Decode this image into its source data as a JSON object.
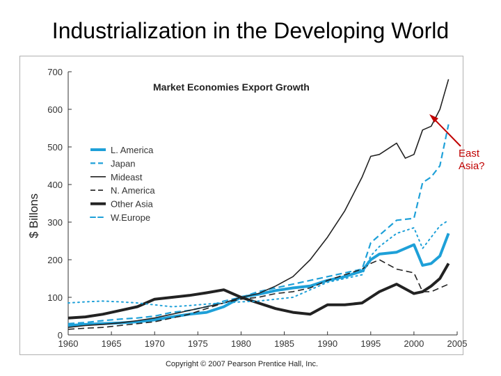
{
  "slide": {
    "title": "Industrialization in the Developing World",
    "callout": {
      "line1": "East",
      "line2": "Asia?",
      "color": "#c00000"
    },
    "copyright": "Copyright © 2007 Pearson Prentice Hall, Inc."
  },
  "chart_data": {
    "type": "line",
    "title": "Market Economies Export Growth",
    "ylabel": "$ Billons",
    "xlabel": "",
    "xlim": [
      1960,
      2005
    ],
    "ylim": [
      0,
      700
    ],
    "x_ticks": [
      1960,
      1965,
      1970,
      1975,
      1980,
      1985,
      1990,
      1995,
      2000,
      2005
    ],
    "y_ticks": [
      0,
      100,
      200,
      300,
      400,
      500,
      600,
      700
    ],
    "grid": false,
    "legend_position": "left",
    "series": [
      {
        "name": "L. America",
        "color": "#1ea0d8",
        "style": "thick",
        "x": [
          1960,
          1962,
          1964,
          1966,
          1968,
          1970,
          1972,
          1974,
          1976,
          1978,
          1980,
          1982,
          1984,
          1986,
          1988,
          1990,
          1992,
          1994,
          1995,
          1996,
          1998,
          2000,
          2001,
          2002,
          2003,
          2004
        ],
        "y": [
          25,
          28,
          30,
          32,
          35,
          40,
          48,
          55,
          60,
          75,
          100,
          108,
          118,
          125,
          130,
          145,
          155,
          170,
          200,
          215,
          220,
          240,
          185,
          190,
          210,
          270
        ]
      },
      {
        "name": "Japan",
        "color": "#1ea0d8",
        "style": "dashed",
        "x": [
          1960,
          1962,
          1964,
          1966,
          1968,
          1970,
          1972,
          1974,
          1976,
          1978,
          1980,
          1982,
          1984,
          1986,
          1988,
          1990,
          1992,
          1994,
          1995,
          1996,
          1998,
          2000,
          2001,
          2002,
          2003,
          2004
        ],
        "y": [
          30,
          33,
          38,
          42,
          45,
          50,
          60,
          65,
          75,
          90,
          100,
          115,
          125,
          135,
          145,
          155,
          165,
          175,
          245,
          265,
          305,
          310,
          405,
          420,
          450,
          560
        ]
      },
      {
        "name": "Mideast",
        "color": "#222222",
        "style": "thin",
        "x": [
          1960,
          1962,
          1964,
          1966,
          1968,
          1970,
          1972,
          1974,
          1976,
          1978,
          1980,
          1982,
          1984,
          1986,
          1988,
          1990,
          1992,
          1994,
          1995,
          1996,
          1998,
          1999,
          2000,
          2001,
          2002,
          2003,
          2004
        ],
        "y": [
          20,
          25,
          28,
          32,
          38,
          45,
          55,
          65,
          75,
          85,
          100,
          110,
          130,
          155,
          200,
          260,
          330,
          420,
          475,
          480,
          510,
          470,
          480,
          545,
          555,
          600,
          680
        ]
      },
      {
        "name": "N. America",
        "color": "#222222",
        "style": "dashed",
        "x": [
          1960,
          1962,
          1964,
          1966,
          1968,
          1970,
          1972,
          1974,
          1976,
          1978,
          1980,
          1982,
          1984,
          1986,
          1988,
          1990,
          1992,
          1994,
          1995,
          1996,
          1998,
          2000,
          2001,
          2002,
          2003,
          2004
        ],
        "y": [
          15,
          18,
          20,
          25,
          30,
          35,
          45,
          55,
          70,
          85,
          95,
          100,
          110,
          115,
          125,
          145,
          160,
          175,
          190,
          200,
          175,
          165,
          115,
          115,
          125,
          135
        ]
      },
      {
        "name": "Other Asia",
        "color": "#222222",
        "style": "thick",
        "x": [
          1960,
          1962,
          1964,
          1966,
          1968,
          1970,
          1972,
          1974,
          1976,
          1978,
          1980,
          1982,
          1984,
          1986,
          1988,
          1990,
          1992,
          1994,
          1995,
          1996,
          1998,
          2000,
          2001,
          2002,
          2003,
          2004
        ],
        "y": [
          45,
          48,
          55,
          65,
          75,
          95,
          100,
          105,
          112,
          120,
          100,
          85,
          70,
          60,
          55,
          80,
          80,
          85,
          100,
          115,
          135,
          110,
          115,
          130,
          150,
          190
        ]
      },
      {
        "name": "W.Europe",
        "color": "#1ea0d8",
        "style": "dotted",
        "x": [
          1960,
          1962,
          1964,
          1966,
          1968,
          1970,
          1972,
          1974,
          1976,
          1978,
          1980,
          1982,
          1984,
          1986,
          1988,
          1990,
          1992,
          1994,
          1995,
          1996,
          1998,
          2000,
          2001,
          2002,
          2003,
          2004
        ],
        "y": [
          85,
          88,
          90,
          88,
          85,
          80,
          75,
          78,
          82,
          85,
          88,
          90,
          95,
          100,
          120,
          140,
          150,
          160,
          210,
          235,
          270,
          285,
          230,
          260,
          290,
          305
        ]
      }
    ]
  }
}
